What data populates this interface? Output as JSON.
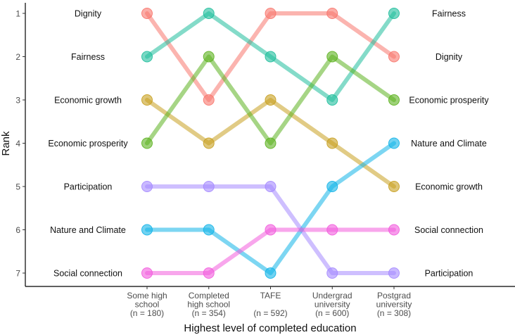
{
  "chart_data": {
    "type": "line",
    "subtype": "bump",
    "xlabel": "Highest level of completed education",
    "ylabel": "Rank",
    "yticks": [
      1,
      2,
      3,
      4,
      5,
      6,
      7
    ],
    "categories": [
      [
        "Some high",
        "school",
        "(n = 180)"
      ],
      [
        "Completed",
        "high school",
        "(n = 354)"
      ],
      [
        "TAFE",
        "",
        "(n = 592)"
      ],
      [
        "Undergrad",
        "university",
        "(n = 600)"
      ],
      [
        "Postgrad",
        "university",
        "(n = 308)"
      ]
    ],
    "series": [
      {
        "name": "Dignity",
        "color": "#F8766D",
        "ranks": [
          1,
          3,
          1,
          1,
          2
        ]
      },
      {
        "name": "Fairness",
        "color": "#1FBE9C",
        "ranks": [
          2,
          1,
          2,
          3,
          1
        ]
      },
      {
        "name": "Economic growth",
        "color": "#C8A020",
        "ranks": [
          3,
          4,
          3,
          4,
          5
        ]
      },
      {
        "name": "Economic prosperity",
        "color": "#5DB320",
        "ranks": [
          4,
          2,
          4,
          2,
          3
        ]
      },
      {
        "name": "Participation",
        "color": "#A58AFF",
        "ranks": [
          5,
          5,
          5,
          7,
          7
        ]
      },
      {
        "name": "Nature and Climate",
        "color": "#13B4E8",
        "ranks": [
          6,
          6,
          7,
          5,
          4
        ]
      },
      {
        "name": "Social connection",
        "color": "#F25CDD",
        "ranks": [
          7,
          7,
          6,
          6,
          6
        ]
      }
    ],
    "left_labels": [
      "Dignity",
      "Fairness",
      "Economic growth",
      "Economic prosperity",
      "Participation",
      "Nature and Climate",
      "Social connection"
    ],
    "right_labels": [
      "Fairness",
      "Dignity",
      "Economic prosperity",
      "Nature and Climate",
      "Economic growth",
      "Social connection",
      "Participation"
    ]
  }
}
